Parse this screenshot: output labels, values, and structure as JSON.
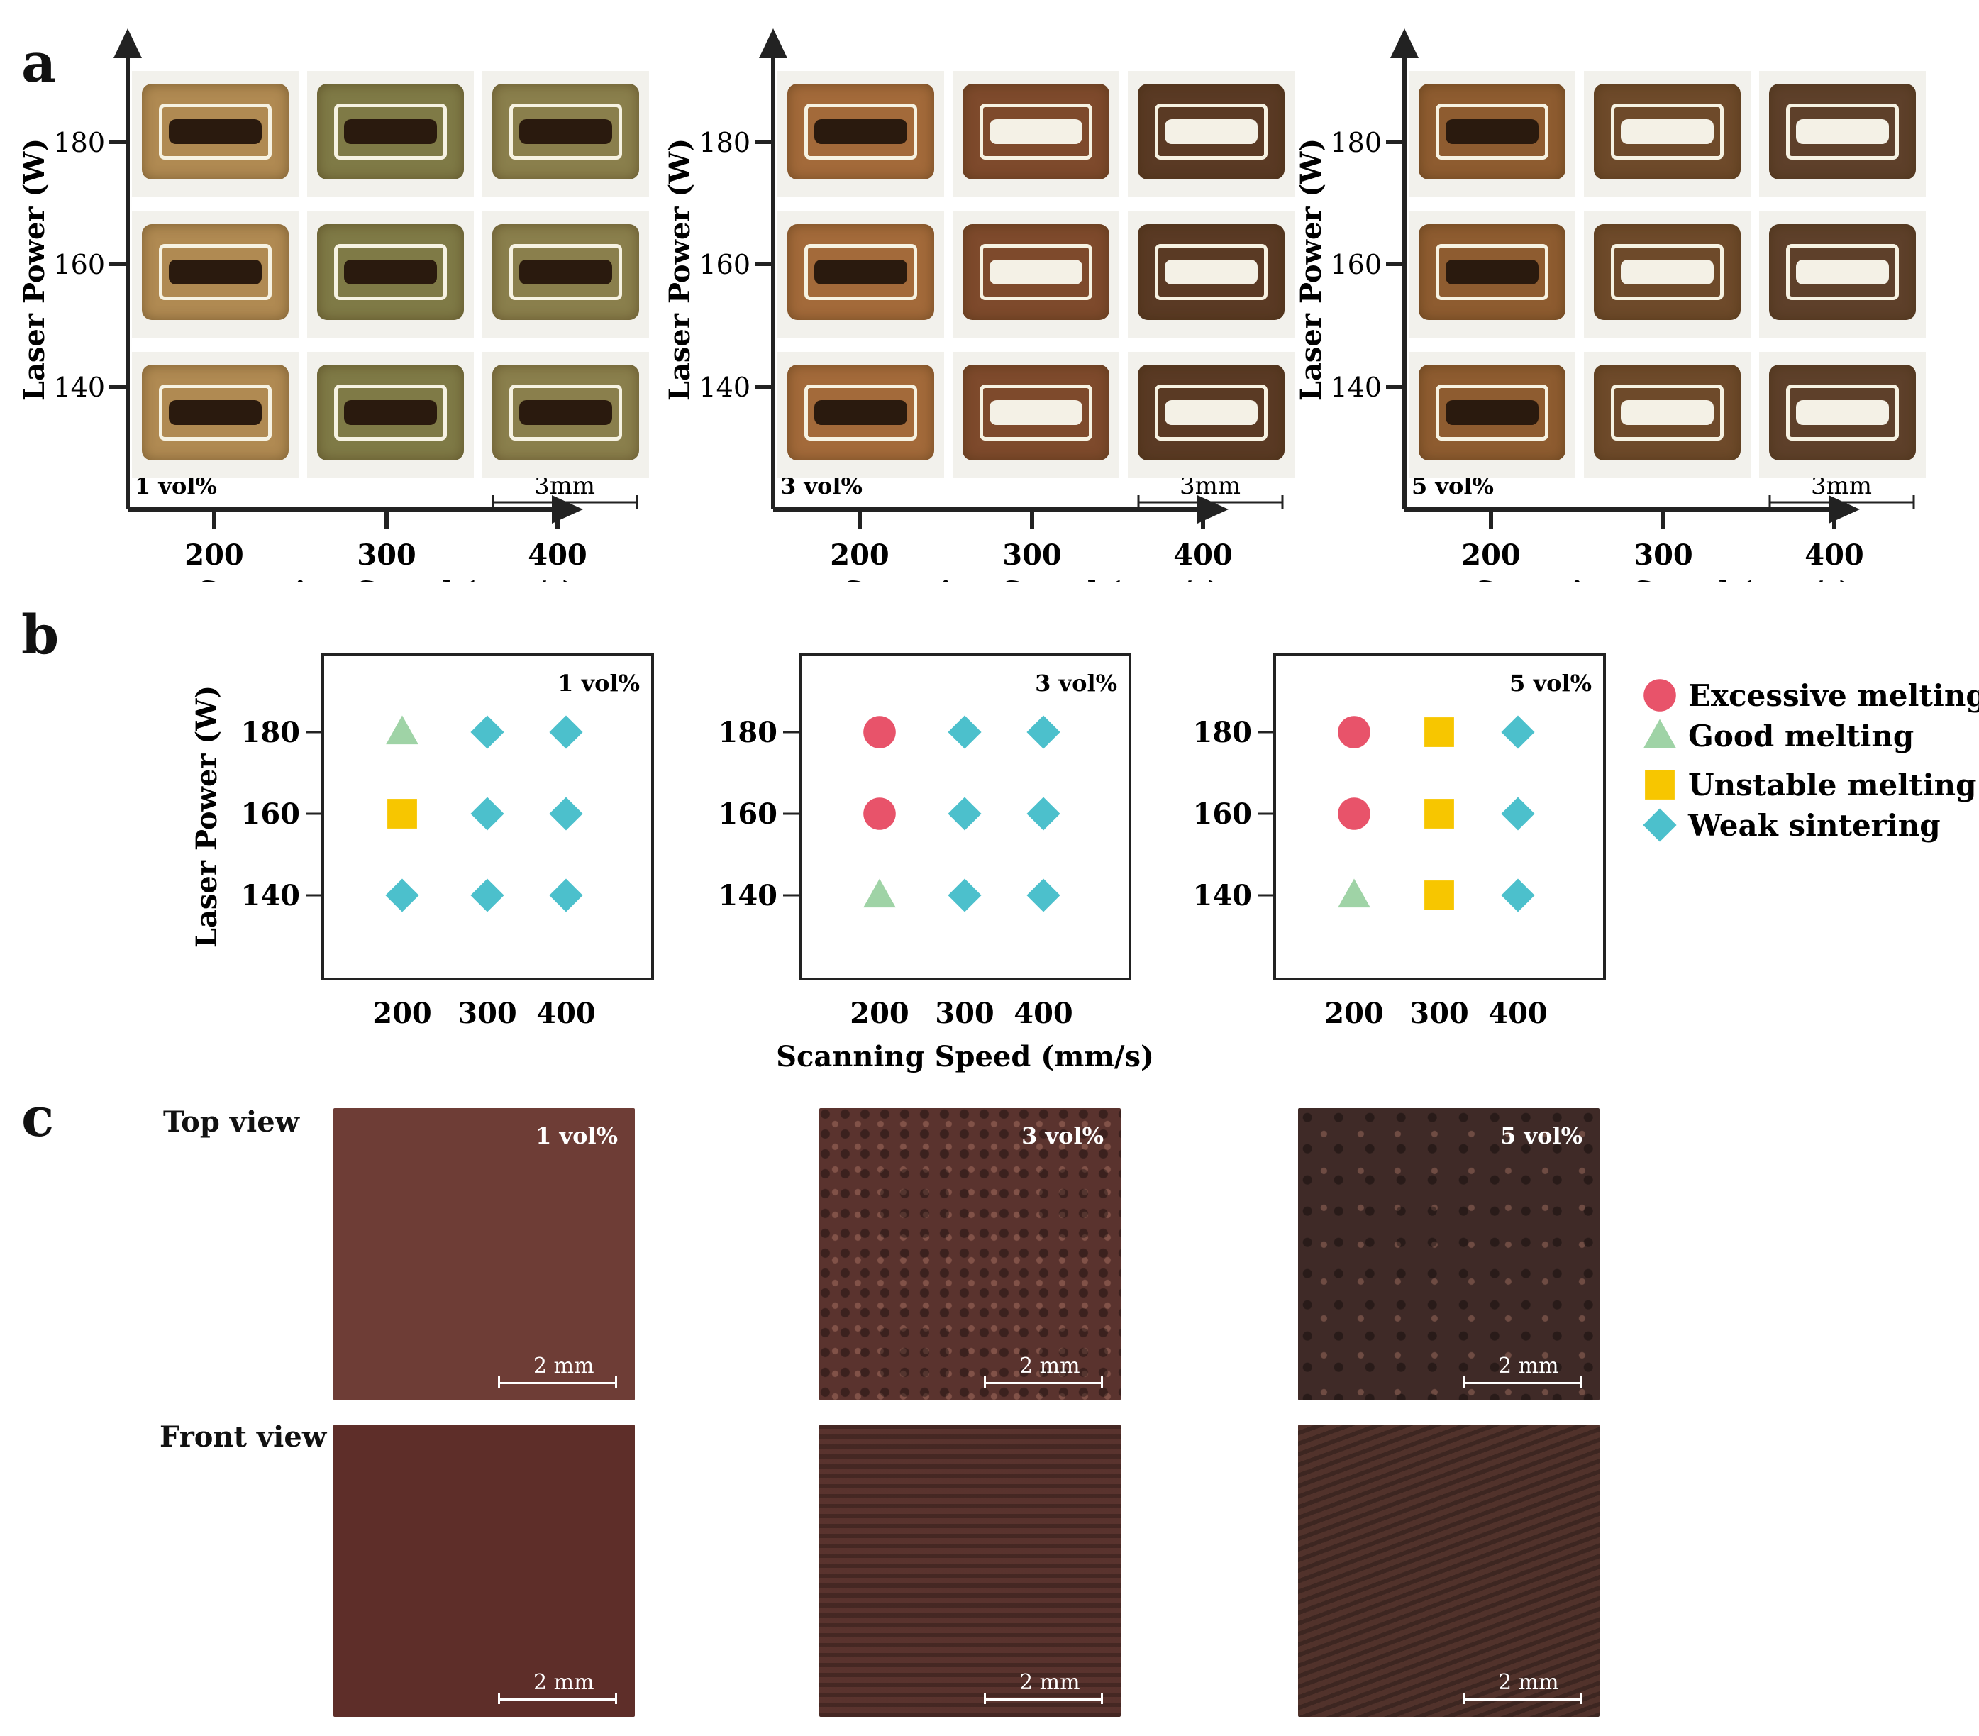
{
  "panels": {
    "a": "a",
    "b": "b",
    "c": "c"
  },
  "panel_a": {
    "y_label": "Laser Power (W)",
    "x_label": "Scanning Speed (mm/s)",
    "y_ticks": [
      "180",
      "160",
      "140"
    ],
    "x_ticks": [
      "200",
      "300",
      "400"
    ],
    "scale": "3mm",
    "grids": [
      {
        "vol": "1 vol%"
      },
      {
        "vol": "3 vol%"
      },
      {
        "vol": "5 vol%"
      }
    ]
  },
  "chart_data": [
    {
      "type": "scatter",
      "title": "1 vol%",
      "xlabel": "",
      "ylabel": "Laser Power (W)",
      "x_ticks": [
        200,
        300,
        400
      ],
      "y_ticks": [
        140,
        160,
        180
      ],
      "points": [
        {
          "x": 200,
          "y": 180,
          "class": "Good melting"
        },
        {
          "x": 300,
          "y": 180,
          "class": "Weak sintering"
        },
        {
          "x": 400,
          "y": 180,
          "class": "Weak sintering"
        },
        {
          "x": 200,
          "y": 160,
          "class": "Unstable melting"
        },
        {
          "x": 300,
          "y": 160,
          "class": "Weak sintering"
        },
        {
          "x": 400,
          "y": 160,
          "class": "Weak sintering"
        },
        {
          "x": 200,
          "y": 140,
          "class": "Weak sintering"
        },
        {
          "x": 300,
          "y": 140,
          "class": "Weak sintering"
        },
        {
          "x": 400,
          "y": 140,
          "class": "Weak sintering"
        }
      ]
    },
    {
      "type": "scatter",
      "title": "3 vol%",
      "xlabel": "Scanning Speed (mm/s)",
      "ylabel": "",
      "x_ticks": [
        200,
        300,
        400
      ],
      "y_ticks": [
        140,
        160,
        180
      ],
      "points": [
        {
          "x": 200,
          "y": 180,
          "class": "Excessive melting"
        },
        {
          "x": 300,
          "y": 180,
          "class": "Weak sintering"
        },
        {
          "x": 400,
          "y": 180,
          "class": "Weak sintering"
        },
        {
          "x": 200,
          "y": 160,
          "class": "Excessive melting"
        },
        {
          "x": 300,
          "y": 160,
          "class": "Weak sintering"
        },
        {
          "x": 400,
          "y": 160,
          "class": "Weak sintering"
        },
        {
          "x": 200,
          "y": 140,
          "class": "Good melting"
        },
        {
          "x": 300,
          "y": 140,
          "class": "Weak sintering"
        },
        {
          "x": 400,
          "y": 140,
          "class": "Weak sintering"
        }
      ]
    },
    {
      "type": "scatter",
      "title": "5 vol%",
      "xlabel": "",
      "ylabel": "",
      "x_ticks": [
        200,
        300,
        400
      ],
      "y_ticks": [
        140,
        160,
        180
      ],
      "points": [
        {
          "x": 200,
          "y": 180,
          "class": "Excessive melting"
        },
        {
          "x": 300,
          "y": 180,
          "class": "Unstable melting"
        },
        {
          "x": 400,
          "y": 180,
          "class": "Weak sintering"
        },
        {
          "x": 200,
          "y": 160,
          "class": "Excessive melting"
        },
        {
          "x": 300,
          "y": 160,
          "class": "Unstable melting"
        },
        {
          "x": 400,
          "y": 160,
          "class": "Weak sintering"
        },
        {
          "x": 200,
          "y": 140,
          "class": "Good melting"
        },
        {
          "x": 300,
          "y": 140,
          "class": "Unstable melting"
        },
        {
          "x": 400,
          "y": 140,
          "class": "Weak sintering"
        }
      ]
    }
  ],
  "legend": [
    {
      "label": "Excessive melting",
      "shape": "circle",
      "color": "#e8536a"
    },
    {
      "label": "Good melting",
      "shape": "triangle",
      "color": "#9fd3a6"
    },
    {
      "label": "Unstable melting",
      "shape": "square",
      "color": "#f7c600"
    },
    {
      "label": "Weak sintering",
      "shape": "diamond",
      "color": "#4cc0cc"
    }
  ],
  "panel_c": {
    "top_view": "Top view",
    "front_view": "Front view",
    "scale": "2 mm",
    "vols": [
      "1 vol%",
      "3 vol%",
      "5 vol%"
    ]
  }
}
